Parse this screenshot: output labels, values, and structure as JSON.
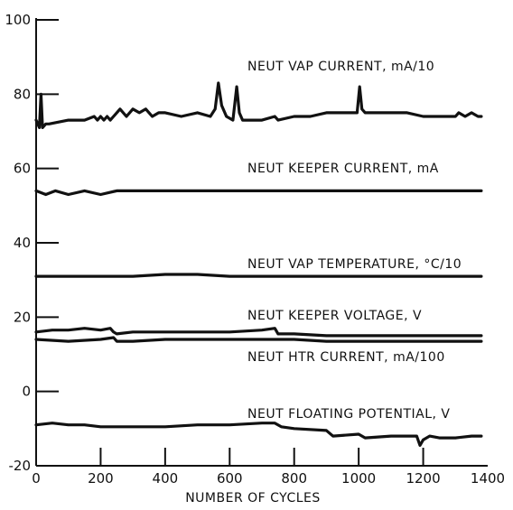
{
  "chart_data": {
    "type": "line",
    "xlabel": "NUMBER OF CYCLES",
    "ylabel": "",
    "xlim": [
      0,
      1400
    ],
    "ylim": [
      -20,
      100
    ],
    "x_ticks": [
      0,
      200,
      400,
      600,
      800,
      1000,
      1200,
      1400
    ],
    "y_ticks": [
      -20,
      0,
      20,
      40,
      60,
      80,
      100
    ],
    "grid": false,
    "series": [
      {
        "name": "NEUT VAP CURRENT, mA/10",
        "x": [
          0,
          10,
          15,
          20,
          30,
          40,
          100,
          150,
          180,
          190,
          200,
          210,
          220,
          230,
          240,
          250,
          260,
          280,
          300,
          320,
          340,
          360,
          380,
          400,
          450,
          500,
          540,
          555,
          565,
          575,
          590,
          610,
          622,
          630,
          640,
          660,
          700,
          740,
          750,
          800,
          850,
          900,
          980,
          995,
          1003,
          1010,
          1020,
          1100,
          1150,
          1200,
          1280,
          1300,
          1310,
          1330,
          1350,
          1370,
          1380
        ],
        "y": [
          73,
          71,
          80,
          71,
          72,
          72,
          73,
          73,
          74,
          73,
          74,
          73,
          74,
          73,
          74,
          75,
          76,
          74,
          76,
          75,
          76,
          74,
          75,
          75,
          74,
          75,
          74,
          76,
          83,
          77,
          74,
          73,
          82,
          75,
          73,
          73,
          73,
          74,
          73,
          74,
          74,
          75,
          75,
          75,
          82,
          76,
          75,
          75,
          75,
          74,
          74,
          74,
          75,
          74,
          75,
          74,
          74
        ]
      },
      {
        "name": "NEUT KEEPER CURRENT, mA",
        "x": [
          0,
          30,
          60,
          100,
          150,
          200,
          250,
          300,
          400,
          500,
          600,
          700,
          800,
          900,
          1000,
          1100,
          1200,
          1300,
          1380
        ],
        "y": [
          54,
          53,
          54,
          53,
          54,
          53,
          54,
          54,
          54,
          54,
          54,
          54,
          54,
          54,
          54,
          54,
          54,
          54,
          54
        ]
      },
      {
        "name": "NEUT VAP TEMPERATURE, °C/10",
        "x": [
          0,
          100,
          200,
          300,
          400,
          500,
          600,
          700,
          800,
          900,
          1000,
          1100,
          1200,
          1300,
          1380
        ],
        "y": [
          31,
          31,
          31,
          31,
          31.5,
          31.5,
          31,
          31,
          31,
          31,
          31,
          31,
          31,
          31,
          31
        ]
      },
      {
        "name": "NEUT KEEPER VOLTAGE, V",
        "x": [
          0,
          50,
          100,
          150,
          200,
          230,
          240,
          250,
          300,
          400,
          500,
          600,
          700,
          740,
          750,
          800,
          900,
          1000,
          1100,
          1200,
          1300,
          1380
        ],
        "y": [
          16,
          16.5,
          16.5,
          17,
          16.5,
          17,
          16,
          15.5,
          16,
          16,
          16,
          16,
          16.5,
          17,
          15.5,
          15.5,
          15,
          15,
          15,
          15,
          15,
          15
        ]
      },
      {
        "name": "NEUT HTR CURRENT, mA/100",
        "x": [
          0,
          100,
          200,
          240,
          250,
          260,
          300,
          400,
          500,
          600,
          700,
          800,
          900,
          1000,
          1100,
          1200,
          1300,
          1380
        ],
        "y": [
          14,
          13.5,
          14,
          14.5,
          13.5,
          13.5,
          13.5,
          14,
          14,
          14,
          14,
          14,
          13.5,
          13.5,
          13.5,
          13.5,
          13.5,
          13.5
        ]
      },
      {
        "name": "NEUT FLOATING POTENTIAL, V",
        "x": [
          0,
          50,
          100,
          150,
          200,
          250,
          300,
          400,
          500,
          600,
          700,
          740,
          760,
          800,
          900,
          920,
          1000,
          1020,
          1100,
          1150,
          1180,
          1190,
          1200,
          1220,
          1250,
          1300,
          1350,
          1380
        ],
        "y": [
          -9,
          -8.5,
          -9,
          -9,
          -9.5,
          -9.5,
          -9.5,
          -9.5,
          -9,
          -9,
          -8.5,
          -8.5,
          -9.5,
          -10,
          -10.5,
          -12,
          -11.5,
          -12.5,
          -12,
          -12,
          -12,
          -14.5,
          -13,
          -12,
          -12.5,
          -12.5,
          -12,
          -12
        ]
      }
    ]
  }
}
